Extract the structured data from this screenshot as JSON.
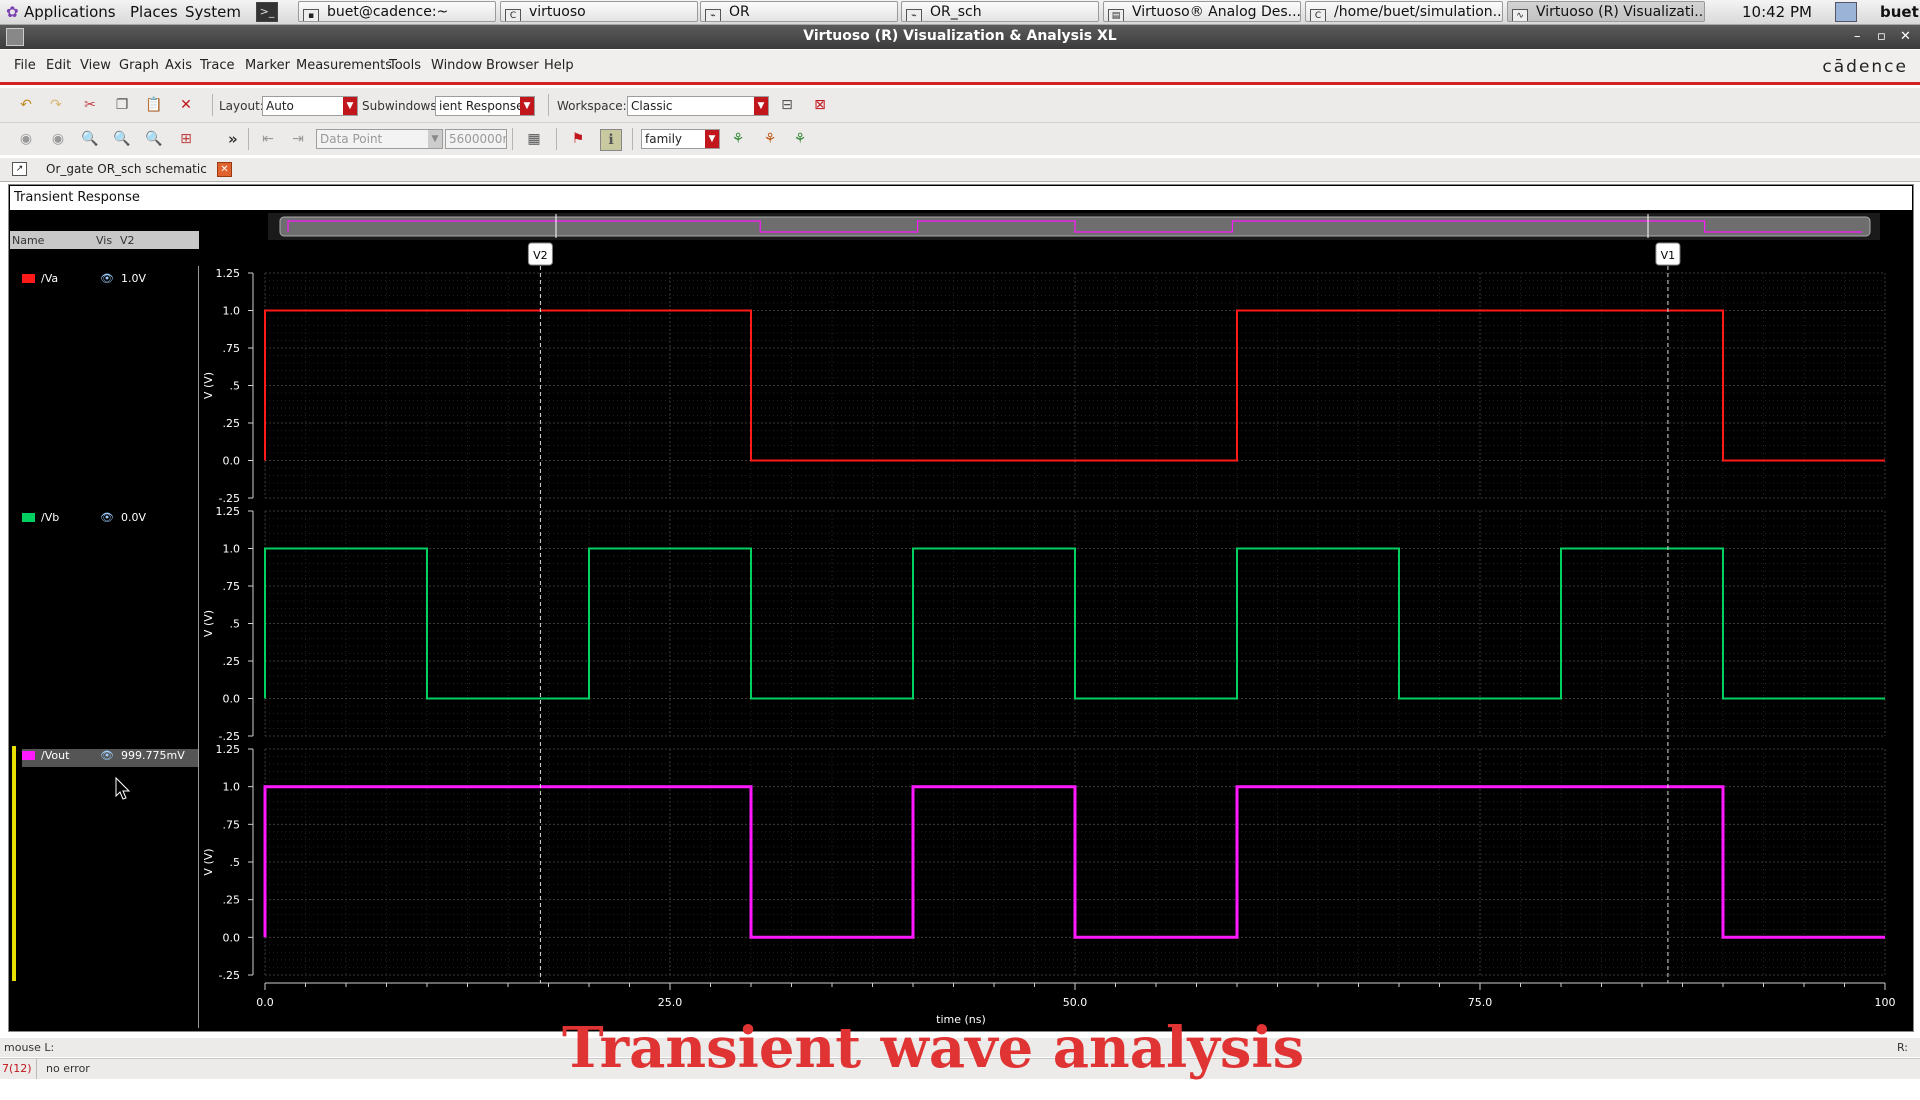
{
  "panel": {
    "applications": "Applications",
    "places": "Places",
    "system": "System",
    "clock": "10:42 PM",
    "user": "buet",
    "taskbar": [
      "buet@cadence:~",
      "virtuoso",
      "OR",
      "OR_sch",
      "Virtuoso® Analog Des...",
      "/home/buet/simulation...",
      "Virtuoso (R) Visualizati..."
    ]
  },
  "window": {
    "title": "Virtuoso (R) Visualization & Analysis XL"
  },
  "menu": [
    "File",
    "Edit",
    "View",
    "Graph",
    "Axis",
    "Trace",
    "Marker",
    "Measurements",
    "Tools",
    "Window",
    "Browser",
    "Help"
  ],
  "brand": "cādence",
  "toolbar1": {
    "layout_label": "Layout:",
    "layout_value": "Auto",
    "subwindows_label": "Subwindows:",
    "subwindows_value": "ient Response",
    "workspace_label": "Workspace:",
    "workspace_value": "Classic"
  },
  "toolbar2": {
    "more": "»",
    "datapoint": "Data Point",
    "value": "5600000n",
    "family": "family"
  },
  "tab": {
    "label": "Or_gate OR_sch schematic"
  },
  "subwindow_title": "Transient Response",
  "legend": {
    "headers": [
      "Name",
      "Vis",
      "V2"
    ],
    "entries": [
      {
        "name": "/Va",
        "value": "1.0V",
        "color": "#ff1a1a"
      },
      {
        "name": "/Vb",
        "value": "0.0V",
        "color": "#00d060"
      },
      {
        "name": "/Vout",
        "value": "999.775mV",
        "color": "#ff19ff"
      }
    ]
  },
  "markers": [
    "V2",
    "V1"
  ],
  "chart_data": {
    "type": "line",
    "xlabel": "time (ns)",
    "xlim": [
      0,
      100
    ],
    "xticks": [
      "0.0",
      "25.0",
      "50.0",
      "75.0",
      "100"
    ],
    "grid": true,
    "markers_x_ns": {
      "V2": 17,
      "V1": 86.6
    },
    "strips": [
      {
        "ylabel": "V (V)",
        "ylim": [
          -0.25,
          1.25
        ],
        "yticks": [
          "1.25",
          "1.0",
          ".75",
          ".5",
          ".25",
          "0.0",
          "-.25"
        ],
        "series": [
          {
            "name": "/Va",
            "color": "#ff1a1a",
            "x": [
              0,
              0,
              30,
              30,
              60,
              60,
              90,
              90,
              100
            ],
            "y": [
              0,
              1,
              1,
              0,
              0,
              1,
              1,
              0,
              0
            ]
          }
        ]
      },
      {
        "ylabel": "V (V)",
        "ylim": [
          -0.25,
          1.25
        ],
        "yticks": [
          "1.25",
          "1.0",
          ".75",
          ".5",
          ".25",
          "0.0",
          "-.25"
        ],
        "series": [
          {
            "name": "/Vb",
            "color": "#00d060",
            "x": [
              0,
              0,
              10,
              10,
              20,
              20,
              30,
              30,
              40,
              40,
              50,
              50,
              60,
              60,
              70,
              70,
              80,
              80,
              90,
              90,
              100
            ],
            "y": [
              0,
              1,
              1,
              0,
              0,
              1,
              1,
              0,
              0,
              1,
              1,
              0,
              0,
              1,
              1,
              0,
              0,
              1,
              1,
              0,
              0
            ]
          }
        ]
      },
      {
        "ylabel": "V (V)",
        "ylim": [
          -0.25,
          1.25
        ],
        "yticks": [
          "1.25",
          "1.0",
          ".75",
          ".5",
          ".25",
          "0.0",
          "-.25"
        ],
        "series": [
          {
            "name": "/Vout",
            "color": "#ff19ff",
            "x": [
              0,
              0,
              30,
              30,
              40,
              40,
              50,
              50,
              60,
              60,
              90,
              90,
              100
            ],
            "y": [
              0,
              1,
              1,
              0,
              0,
              1,
              1,
              0,
              0,
              1,
              1,
              0,
              0
            ]
          }
        ]
      }
    ]
  },
  "status": {
    "mouse": "mouse L:",
    "right": "R:",
    "counter": "7(12)",
    "message": "no error"
  },
  "caption": "Transient wave analysis"
}
